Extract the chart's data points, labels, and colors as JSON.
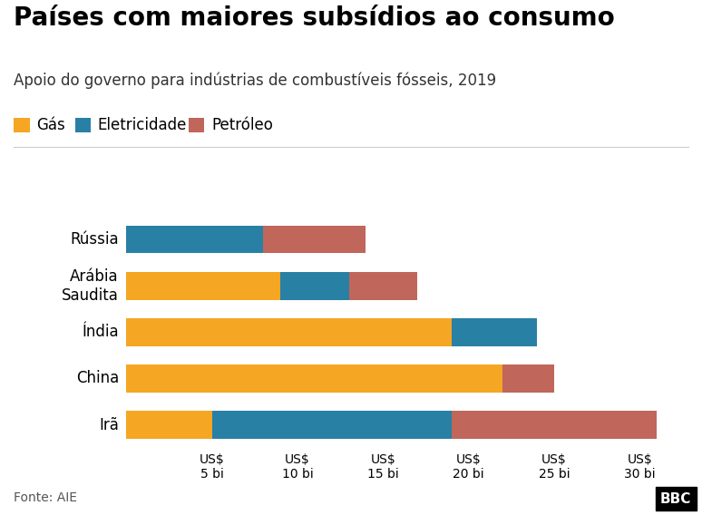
{
  "title": "Países com maiores subsídios ao consumo",
  "subtitle": "Apoio do governo para indústrias de combustíveis fósseis, 2019",
  "countries_bottom_to_top": [
    "Irã",
    "China",
    "Índia",
    "Arábia\nSaudita",
    "Rússia"
  ],
  "gas": [
    5,
    22,
    19,
    9,
    0
  ],
  "electricity": [
    14,
    0,
    5,
    4,
    8
  ],
  "oil": [
    12,
    3,
    0,
    4,
    6
  ],
  "color_gas": "#F5A623",
  "color_elec": "#2980A5",
  "color_oil": "#C0665A",
  "xlim": [
    0,
    32
  ],
  "xticks": [
    5,
    10,
    15,
    20,
    25,
    30
  ],
  "xlabel_labels": [
    "US$\n5 bi",
    "US$\n10 bi",
    "US$\n15 bi",
    "US$\n20 bi",
    "US$\n25 bi",
    "US$\n30 bi"
  ],
  "background_color": "#FFFFFF",
  "fonte": "Fonte: AIE",
  "title_fontsize": 20,
  "subtitle_fontsize": 12,
  "legend_fontsize": 12,
  "tick_fontsize": 10,
  "label_fontsize": 12,
  "bar_height": 0.6
}
